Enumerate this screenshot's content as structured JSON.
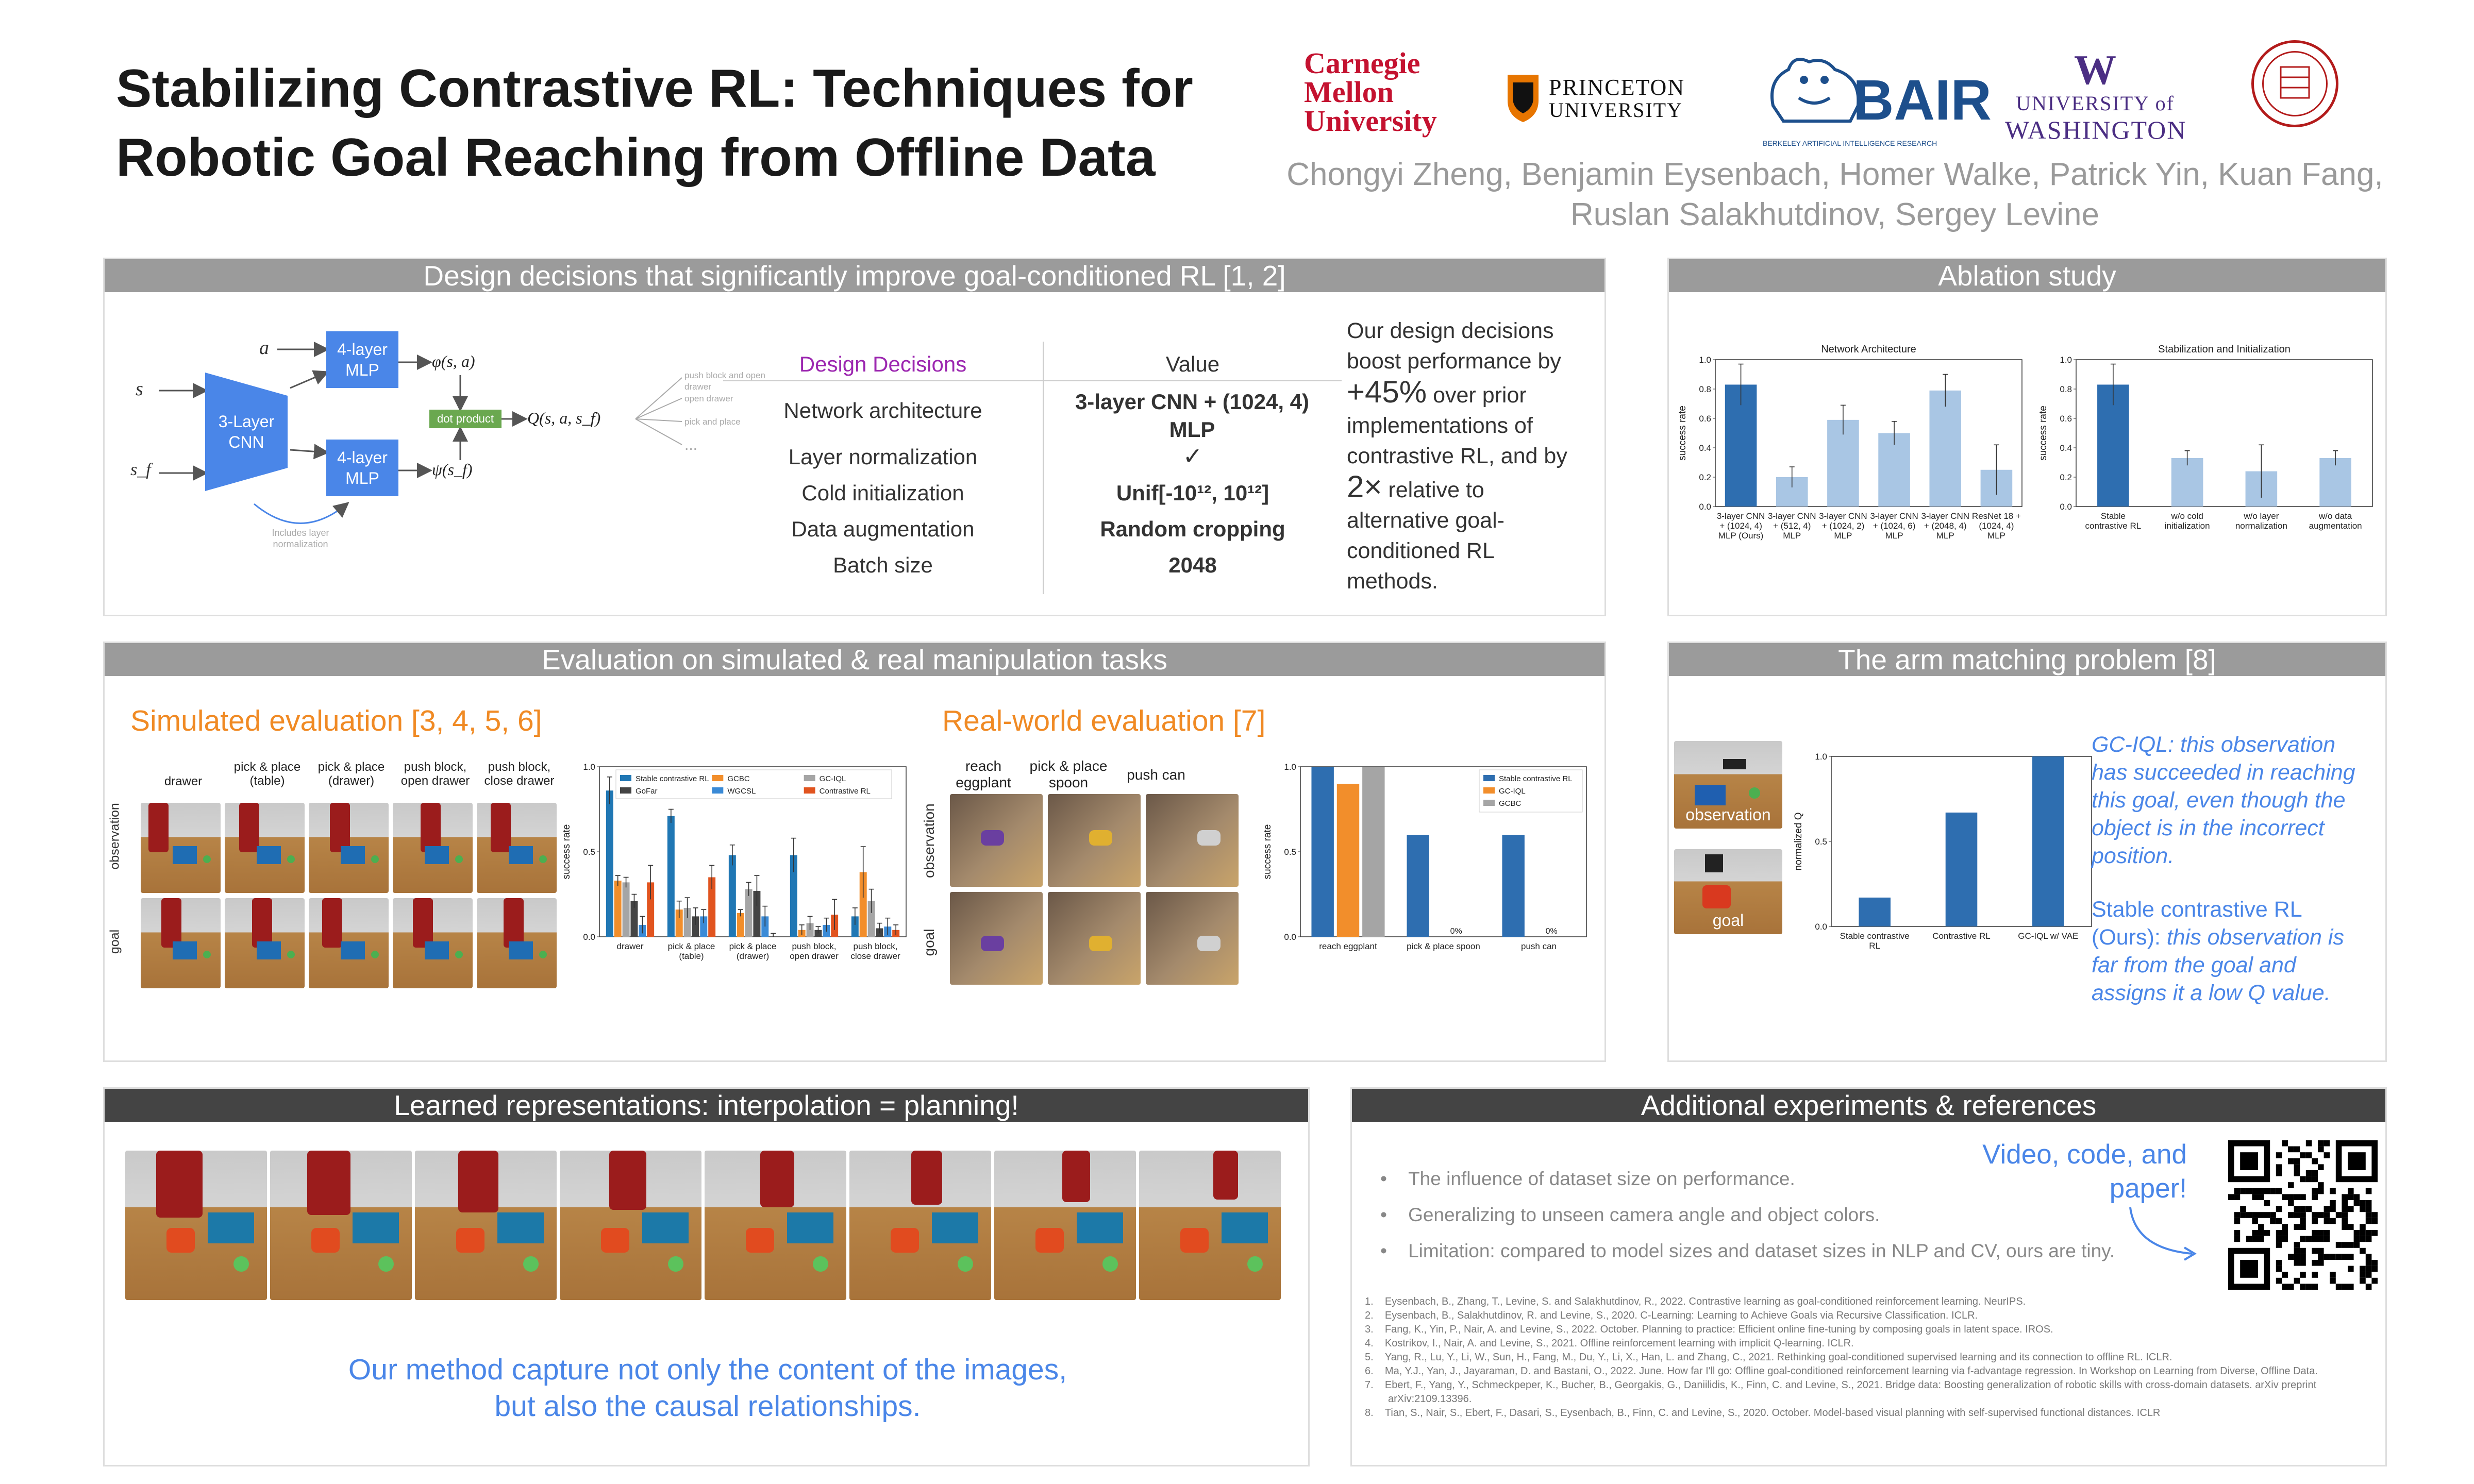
{
  "title": "Stabilizing Contrastive RL: Techniques for Robotic Goal Reaching from Offline Data",
  "authors_line1": "Chongyi Zheng, Benjamin Eysenbach, Homer Walke, Patrick Yin, Kuan Fang,",
  "authors_line2": "Ruslan Salakhutdinov, Sergey Levine",
  "logos": {
    "cmu": [
      "Carnegie",
      "Mellon",
      "University"
    ],
    "princeton": [
      "PRINCETON",
      "UNIVERSITY"
    ],
    "bair": "BAIR",
    "bair_sub": "BERKELEY ARTIFICIAL INTELLIGENCE RESEARCH",
    "uw_letter": "W",
    "uw": [
      "UNIVERSITY of",
      "WASHINGTON"
    ]
  },
  "design": {
    "header": "Design decisions that significantly improve goal-conditioned RL [1, 2]",
    "diagram": {
      "a": "a",
      "s": "s",
      "sf": "s_f",
      "cnn": [
        "3-Layer",
        "CNN"
      ],
      "mlp": [
        "4-layer",
        "MLP"
      ],
      "phi": "φ(s, a)",
      "psi": "ψ(s_f)",
      "dot": "dot product",
      "q": "Q(s, a, s_f)",
      "tasks": [
        "push block and open drawer",
        "open drawer",
        "pick and place",
        "..."
      ],
      "note": [
        "Includes layer",
        "normalization"
      ]
    },
    "table": {
      "col1": "Design Decisions",
      "col2": "Value",
      "rows": [
        {
          "k": "Network architecture",
          "v": "3-layer CNN + (1024, 4) MLP"
        },
        {
          "k": "Layer normalization",
          "v": "✓"
        },
        {
          "k": "Cold initialization",
          "v": "Unif[-10¹², 10¹²]"
        },
        {
          "k": "Data augmentation",
          "v": "Random cropping"
        },
        {
          "k": "Batch size",
          "v": "2048"
        }
      ]
    },
    "text": {
      "p1": "Our design decisions boost performance by",
      "big1": "+45%",
      "p2": "over prior implementations of contrastive RL, and by",
      "big2": "2×",
      "p3": "relative to alternative goal-conditioned RL methods."
    }
  },
  "ablation": {
    "header": "Ablation study",
    "ylabel": "success rate"
  },
  "evaluation": {
    "header": "Evaluation on simulated & real manipulation tasks",
    "sim_title": "Simulated evaluation [3, 4, 5, 6]",
    "real_title": "Real-world evaluation [7]",
    "sim_cols": [
      "drawer",
      "pick & place (table)",
      "pick & place (drawer)",
      "push block, open drawer",
      "push block, close drawer"
    ],
    "real_cols": [
      "reach eggplant",
      "pick & place spoon",
      "push can"
    ],
    "row_labels": [
      "observation",
      "goal"
    ],
    "ylabel": "success rate"
  },
  "arm": {
    "header": "The arm matching problem [8]",
    "obs_label": "observation",
    "goal_label": "goal",
    "ylabel": "normalized Q",
    "text1": "GC-IQL: this observation has succeeded in reaching this goal, even though the object is in the incorrect position.",
    "text2_prefix": "Stable contrastive RL (Ours):",
    "text2": " this observation is far from the goal and assigns it a low Q value.",
    "text1_prefix": "GC-IQL:"
  },
  "learned": {
    "header": "Learned representations: interpolation = planning!",
    "caption": "Our method capture not only the content of the images, but also the causal relationships."
  },
  "additional": {
    "header": "Additional experiments & references",
    "bullets": [
      "The influence of dataset size on performance.",
      "Generalizing to unseen camera angle and object colors.",
      "Limitation: compared to model sizes and dataset sizes in NLP and CV, ours are tiny."
    ],
    "video": "Video, code, and paper!",
    "refs": [
      "Eysenbach, B., Zhang, T., Levine, S. and Salakhutdinov, R., 2022. Contrastive learning as goal-conditioned reinforcement learning. NeurIPS.",
      "Eysenbach, B., Salakhutdinov, R. and Levine, S., 2020. C-Learning: Learning to Achieve Goals via Recursive Classification. ICLR.",
      "Fang, K., Yin, P., Nair, A. and Levine, S., 2022. October. Planning to practice: Efficient online fine-tuning by composing goals in latent space. IROS.",
      "Kostrikov, I., Nair, A. and Levine, S., 2021. Offline reinforcement learning with implicit Q-learning. ICLR.",
      "Yang, R., Lu, Y., Li, W., Sun, H., Fang, M., Du, Y., Li, X., Han, L. and Zhang, C., 2021. Rethinking goal-conditioned supervised learning and its connection to offline RL. ICLR.",
      "Ma, Y.J., Yan, J., Jayaraman, D. and Bastani, O., 2022. June. How far I'll go: Offline goal-conditioned reinforcement learning via f-advantage regression. In Workshop on Learning from Diverse, Offline Data.",
      "Ebert, F., Yang, Y., Schmeckpeper, K., Bucher, B., Georgakis, G., Daniilidis, K., Finn, C. and Levine, S., 2021. Bridge data: Boosting generalization of robotic skills with cross-domain datasets. arXiv preprint arXiv:2109.13396.",
      "Tian, S., Nair, S., Ebert, F., Dasari, S., Eysenbach, B., Finn, C. and Levine, S., 2020. October. Model-based visual planning with self-supervised functional distances. ICLR"
    ]
  },
  "chart_data": [
    {
      "type": "bar",
      "title": "Network Architecture",
      "ylabel": "success rate",
      "ylim": [
        0,
        1
      ],
      "yticks": [
        "0.0",
        "0.2",
        "0.4",
        "0.6",
        "0.8",
        "1.0"
      ],
      "categories": [
        "3-layer CNN + (1024, 4) MLP (Ours)",
        "3-layer CNN + (512, 4) MLP",
        "3-layer CNN + (1024, 2) MLP",
        "3-layer CNN + (1024, 6) MLP",
        "3-layer CNN + (2048, 4) MLP",
        "ResNet 18 + (1024, 4) MLP"
      ],
      "values": [
        0.83,
        0.2,
        0.59,
        0.5,
        0.79,
        0.25
      ],
      "errors": [
        0.14,
        0.07,
        0.1,
        0.08,
        0.11,
        0.17
      ],
      "colors": [
        "#2e6eb0",
        "#a9c6e4",
        "#a9c6e4",
        "#a9c6e4",
        "#a9c6e4",
        "#a9c6e4"
      ]
    },
    {
      "type": "bar",
      "title": "Stabilization and Initialization",
      "ylabel": "success rate",
      "ylim": [
        0,
        1
      ],
      "yticks": [
        "0.0",
        "0.2",
        "0.4",
        "0.6",
        "0.8",
        "1.0"
      ],
      "categories": [
        "Stable contrastive RL",
        "w/o cold initialization",
        "w/o layer normalization",
        "w/o data augmentation"
      ],
      "values": [
        0.83,
        0.33,
        0.24,
        0.33
      ],
      "errors": [
        0.14,
        0.05,
        0.18,
        0.05
      ],
      "colors": [
        "#2e6eb0",
        "#a9c6e4",
        "#a9c6e4",
        "#a9c6e4"
      ]
    },
    {
      "type": "bar",
      "ylabel": "success rate",
      "ylim": [
        0,
        1
      ],
      "yticks": [
        "0.0",
        "0.5",
        "1.0"
      ],
      "categories": [
        "drawer",
        "pick & place (table)",
        "pick & place (drawer)",
        "push block, open drawer",
        "push block, close drawer"
      ],
      "series": [
        {
          "name": "Stable contrastive RL",
          "color": "#2077b4",
          "values": [
            0.86,
            0.71,
            0.48,
            0.48,
            0.12
          ],
          "errors": [
            0.08,
            0.04,
            0.06,
            0.1,
            0.05
          ]
        },
        {
          "name": "GCBC",
          "color": "#f28e2b",
          "values": [
            0.33,
            0.16,
            0.14,
            0.04,
            0.38
          ],
          "errors": [
            0.03,
            0.05,
            0.02,
            0.03,
            0.15
          ]
        },
        {
          "name": "GC-IQL",
          "color": "#a5a5a5",
          "values": [
            0.32,
            0.17,
            0.28,
            0.08,
            0.21
          ],
          "errors": [
            0.03,
            0.06,
            0.04,
            0.04,
            0.07
          ]
        },
        {
          "name": "GoFar",
          "color": "#444444",
          "values": [
            0.21,
            0.12,
            0.27,
            0.04,
            0.05
          ],
          "errors": [
            0.04,
            0.05,
            0.09,
            0.02,
            0.03
          ]
        },
        {
          "name": "WGCSL",
          "color": "#3a8ad6",
          "values": [
            0.07,
            0.12,
            0.12,
            0.07,
            0.06
          ],
          "errors": [
            0.05,
            0.04,
            0.06,
            0.04,
            0.05
          ]
        },
        {
          "name": "Contrastive RL",
          "color": "#e1541f",
          "values": [
            0.32,
            0.35,
            0.0,
            0.13,
            0.04
          ],
          "errors": [
            0.1,
            0.07,
            0.02,
            0.09,
            0.03
          ]
        }
      ],
      "legend": "top"
    },
    {
      "type": "bar",
      "ylabel": "success rate",
      "ylim": [
        0,
        1
      ],
      "yticks": [
        "0.0",
        "0.5",
        "1.0"
      ],
      "categories": [
        "reach eggplant",
        "pick & place spoon",
        "push can"
      ],
      "series": [
        {
          "name": "Stable contrastive RL",
          "color": "#2e6eb0",
          "values": [
            1.0,
            0.6,
            0.6
          ]
        },
        {
          "name": "GC-IQL",
          "color": "#f28e2b",
          "values": [
            0.9,
            0.0,
            0.0
          ]
        },
        {
          "name": "GCBC",
          "color": "#a5a5a5",
          "values": [
            1.0,
            0.0,
            0.0
          ]
        }
      ],
      "zero_labels": [
        "0%",
        "0%"
      ],
      "legend": "top-right"
    },
    {
      "type": "bar",
      "ylabel": "normalized Q",
      "ylim": [
        0,
        1
      ],
      "yticks": [
        "0.0",
        "0.5",
        "1.0"
      ],
      "categories": [
        "Stable contrastive RL",
        "Contrastive RL",
        "GC-IQL w/ VAE"
      ],
      "values": [
        0.17,
        0.67,
        1.0
      ],
      "colors": [
        "#2e6eb0",
        "#2e6eb0",
        "#2e6eb0"
      ]
    }
  ]
}
